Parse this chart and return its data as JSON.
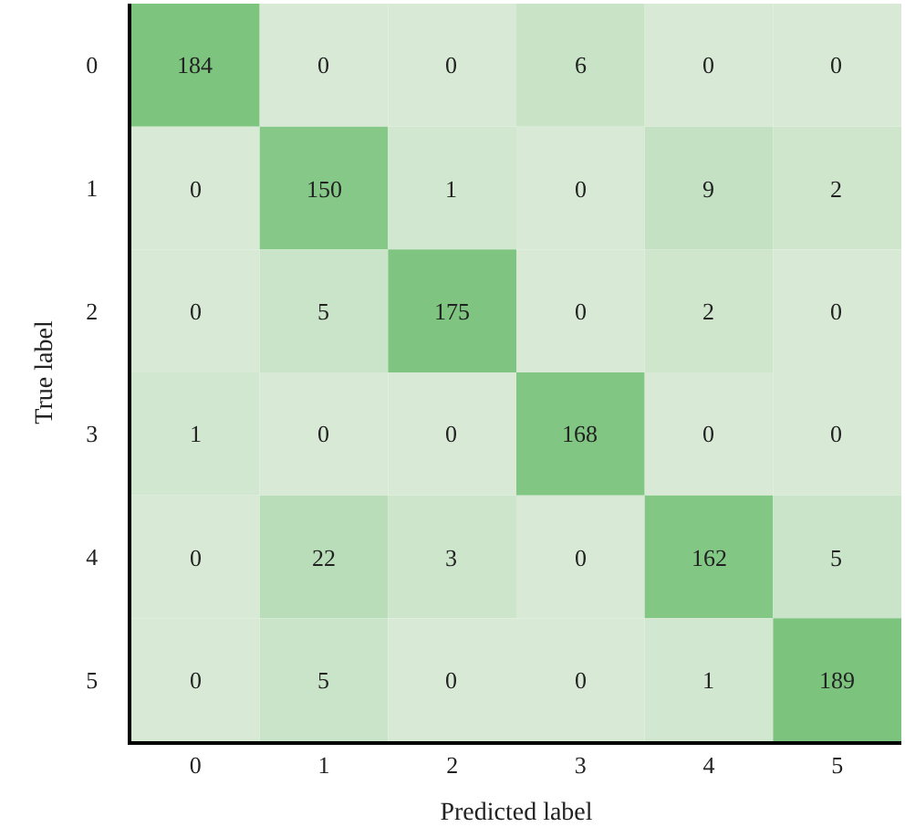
{
  "chart_data": {
    "type": "heatmap",
    "xlabel": "Predicted label",
    "ylabel": "True label",
    "categories": [
      "0",
      "1",
      "2",
      "3",
      "4",
      "5"
    ],
    "y_categories": [
      "0",
      "1",
      "2",
      "3",
      "4",
      "5"
    ],
    "cells": [
      [
        184,
        0,
        0,
        6,
        0,
        0
      ],
      [
        0,
        150,
        1,
        0,
        9,
        2
      ],
      [
        0,
        5,
        175,
        0,
        2,
        0
      ],
      [
        1,
        0,
        0,
        168,
        0,
        0
      ],
      [
        0,
        22,
        3,
        0,
        162,
        5
      ],
      [
        0,
        5,
        0,
        0,
        1,
        189
      ]
    ],
    "data_labels": true
  }
}
